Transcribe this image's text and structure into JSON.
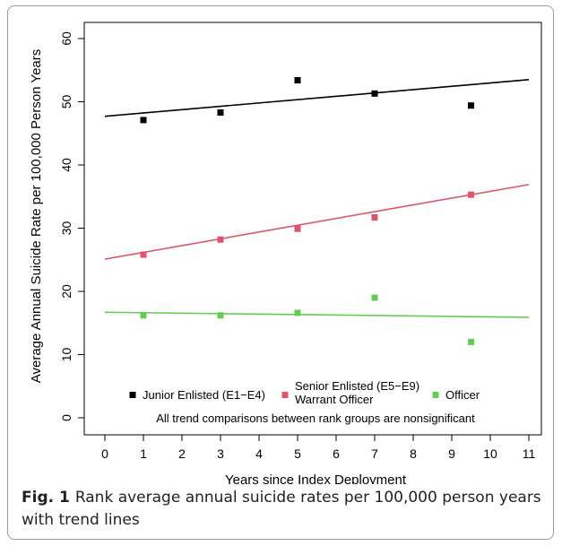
{
  "chart_data": {
    "type": "scatter",
    "xlabel": "Years since Index Deployment",
    "ylabel": "Average Annual Suicide Rate per 100,000 Person Years",
    "xlim": [
      0,
      11
    ],
    "ylim": [
      0,
      60
    ],
    "xticks": [
      0,
      1,
      2,
      3,
      4,
      5,
      6,
      7,
      8,
      9,
      10,
      11
    ],
    "yticks": [
      0,
      10,
      20,
      30,
      40,
      50,
      60
    ],
    "grid": false,
    "legend_position": "bottom",
    "series": [
      {
        "name": "Junior Enlisted (E1−E4)",
        "color": "#000000",
        "x": [
          1,
          3,
          5,
          7,
          9.5
        ],
        "y": [
          47.1,
          48.3,
          53.4,
          51.3,
          49.4
        ],
        "trend": {
          "x": [
            0,
            11
          ],
          "y": [
            47.7,
            53.5
          ]
        }
      },
      {
        "name": "Senior Enlisted (E5−E9)\nWarrant Officer",
        "color": "#df536b",
        "x": [
          1,
          3,
          5,
          7,
          9.5
        ],
        "y": [
          25.8,
          28.2,
          29.9,
          31.7,
          35.3
        ],
        "trend": {
          "x": [
            0,
            11
          ],
          "y": [
            25.1,
            36.9
          ]
        }
      },
      {
        "name": "Officer",
        "color": "#61d04f",
        "x": [
          1,
          3,
          5,
          7,
          9.5
        ],
        "y": [
          16.2,
          16.2,
          16.6,
          19.0,
          12.0
        ],
        "trend": {
          "x": [
            0,
            11
          ],
          "y": [
            16.7,
            15.9
          ]
        }
      }
    ],
    "annotation": "All trend comparisons between rank groups are nonsignificant"
  },
  "caption": {
    "label": "Fig. 1",
    "text": "Rank average annual suicide rates per 100,000 person years with trend lines"
  }
}
